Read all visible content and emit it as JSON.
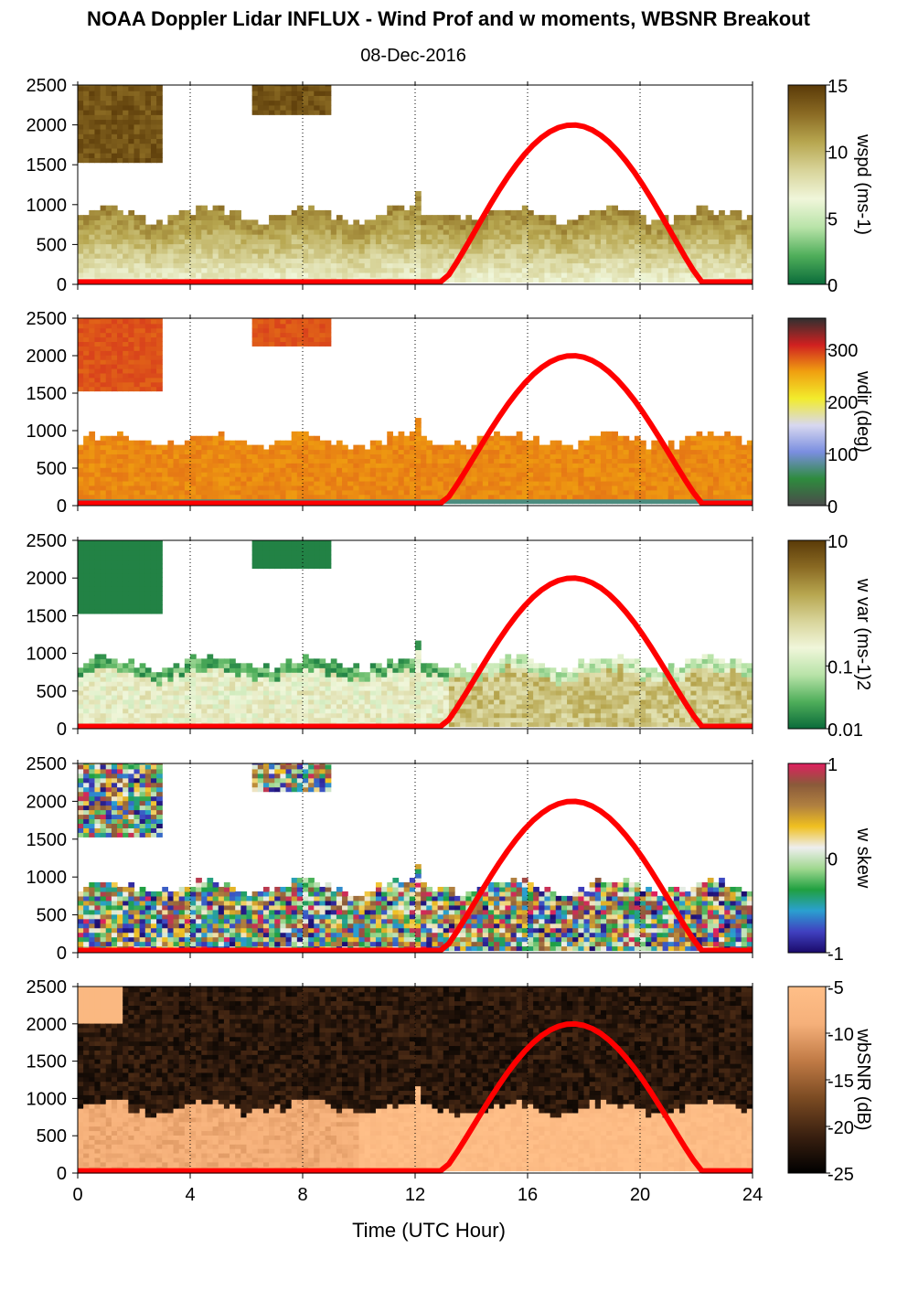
{
  "title": "NOAA Doppler Lidar INFLUX - Wind Prof and w moments, WBSNR Breakout",
  "date": "08-Dec-2016",
  "chart_data": [
    {
      "type": "heatmap",
      "variable": "wspd",
      "colorbar_label": "wspd (ms-1)",
      "clim": [
        0,
        15
      ],
      "colorbar_ticks": [
        "0",
        "5",
        "10",
        "15"
      ],
      "colormap": [
        "#0a6b3a",
        "#4fae5a",
        "#b8e3a8",
        "#f0f6da",
        "#d8d49a",
        "#b7a64f",
        "#8a6a23",
        "#5a3a08"
      ],
      "xlim": [
        0,
        24
      ],
      "x_ticks": [
        0,
        4,
        8,
        12,
        16,
        20,
        24
      ],
      "ylim": [
        0,
        2500
      ],
      "y_ticks": [
        0,
        500,
        1000,
        1500,
        2000,
        2500
      ],
      "typical_values": {
        "boundary_layer_top_m": 850,
        "low_level_value": 10,
        "upper_level_value": 14
      }
    },
    {
      "type": "heatmap",
      "variable": "wdir",
      "colorbar_label": "wdir (deg)",
      "clim": [
        0,
        360
      ],
      "colorbar_ticks": [
        "0",
        "100",
        "200",
        "300"
      ],
      "colormap": [
        "#4a4a4a",
        "#2e8b3e",
        "#7a8ee0",
        "#d8d8f0",
        "#f2ec2c",
        "#f0a010",
        "#d02020",
        "#303030"
      ],
      "xlim": [
        0,
        24
      ],
      "x_ticks": [
        0,
        4,
        8,
        12,
        16,
        20,
        24
      ],
      "ylim": [
        0,
        2500
      ],
      "y_ticks": [
        0,
        500,
        1000,
        1500,
        2000,
        2500
      ],
      "typical_values": {
        "boundary_layer_top_m": 850,
        "dominant_direction_deg": 275
      }
    },
    {
      "type": "heatmap",
      "variable": "w var",
      "colorbar_label": "w var (ms-1)2",
      "scale": "log",
      "clim": [
        0.01,
        10
      ],
      "colorbar_ticks": [
        "0.01",
        "0.1",
        "10"
      ],
      "colormap": [
        "#0a6b3a",
        "#4fae5a",
        "#b8e3a8",
        "#f0f6da",
        "#d8d49a",
        "#b7a64f",
        "#8a6a23",
        "#5a3a08"
      ],
      "xlim": [
        0,
        24
      ],
      "x_ticks": [
        0,
        4,
        8,
        12,
        16,
        20,
        24
      ],
      "ylim": [
        0,
        2500
      ],
      "y_ticks": [
        0,
        500,
        1000,
        1500,
        2000,
        2500
      ],
      "typical_values": {
        "boundary_layer_top_m": 850
      }
    },
    {
      "type": "heatmap",
      "variable": "w skew",
      "colorbar_label": "w skew",
      "clim": [
        -1,
        1
      ],
      "colorbar_ticks": [
        "-1",
        "0",
        "1"
      ],
      "colormap": [
        "#1a0a6a",
        "#4040c0",
        "#2aa0d0",
        "#20a040",
        "#a0d890",
        "#eeeeee",
        "#f0c020",
        "#b08040",
        "#8a5a3a",
        "#e02060"
      ],
      "xlim": [
        0,
        24
      ],
      "x_ticks": [
        0,
        4,
        8,
        12,
        16,
        20,
        24
      ],
      "ylim": [
        0,
        2500
      ],
      "y_ticks": [
        0,
        500,
        1000,
        1500,
        2000,
        2500
      ],
      "typical_values": {
        "boundary_layer_top_m": 850
      }
    },
    {
      "type": "heatmap",
      "variable": "wbSNR",
      "colorbar_label": "wbSNR (dB)",
      "clim": [
        -25,
        -5
      ],
      "colorbar_ticks": [
        "-25",
        "-20",
        "-15",
        "-10",
        "-5"
      ],
      "colormap": [
        "#000000",
        "#3a2010",
        "#7a4a22",
        "#c07a45",
        "#f5b07a",
        "#ffbf88"
      ],
      "xlim": [
        0,
        24
      ],
      "x_ticks": [
        0,
        4,
        8,
        12,
        16,
        20,
        24
      ],
      "ylim": [
        0,
        2500
      ],
      "y_ticks": [
        0,
        500,
        1000,
        1500,
        2000,
        2500
      ],
      "xlabel": "Time (UTC Hour)",
      "typical_values": {
        "boundary_layer_top_m": 850,
        "high_snr_db": -6,
        "low_snr_db": -24
      }
    }
  ],
  "overlay": {
    "description_color": "#ff0000",
    "solar_elevation_curve": {
      "start_hour": 13.0,
      "peak_hour": 17.6,
      "end_hour": 22.2,
      "peak_y": 2000,
      "base_y": 30
    }
  }
}
